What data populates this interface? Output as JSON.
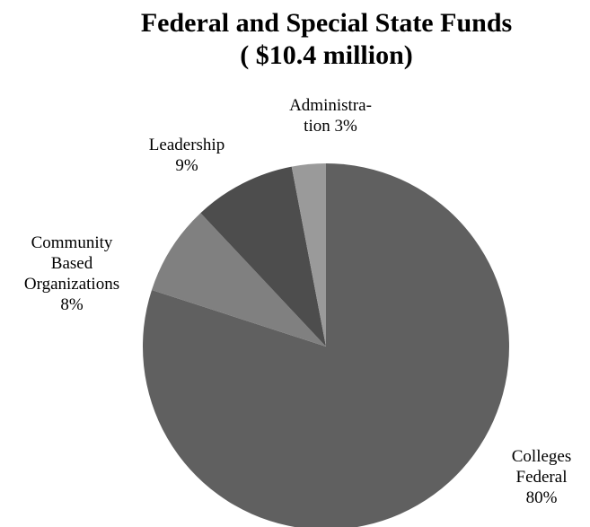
{
  "chart_data": {
    "type": "pie",
    "title_lines": [
      "Federal and Special State Funds",
      "( $10.4 million)"
    ],
    "slices": [
      {
        "label_lines": [
          "Colleges",
          "Federal",
          "80%"
        ],
        "value": 80,
        "color": "#606060"
      },
      {
        "label_lines": [
          "Community",
          "Based",
          "Organizations",
          "8%"
        ],
        "value": 8,
        "color": "#808080"
      },
      {
        "label_lines": [
          "Leadership",
          "9%"
        ],
        "value": 9,
        "color": "#4d4d4d"
      },
      {
        "label_lines": [
          "Administra-",
          "tion  3%"
        ],
        "value": 3,
        "color": "#9a9a9a"
      }
    ],
    "legend": "none"
  }
}
